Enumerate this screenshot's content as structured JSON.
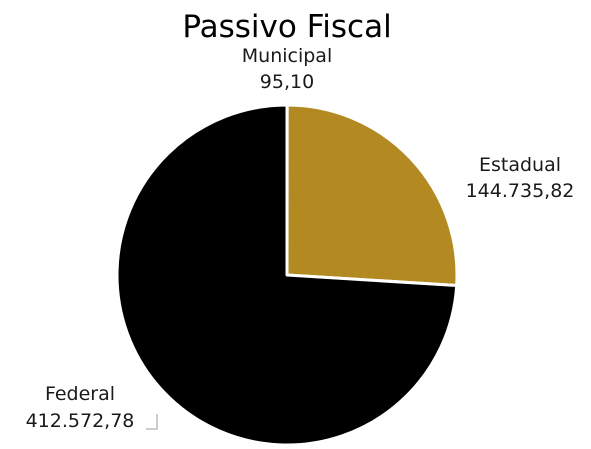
{
  "chart_data": {
    "type": "pie",
    "title": "Passivo Fiscal",
    "slices": [
      {
        "label": "Municipal",
        "value_text": "95,10",
        "value": 95.1,
        "color": "#b38a22"
      },
      {
        "label": "Estadual",
        "value_text": "144.735,82",
        "value": 144735.82,
        "color": "#b38a22"
      },
      {
        "label": "Federal",
        "value_text": "412.572,78",
        "value": 412572.78,
        "color": "#000000"
      }
    ],
    "legend": "none"
  }
}
